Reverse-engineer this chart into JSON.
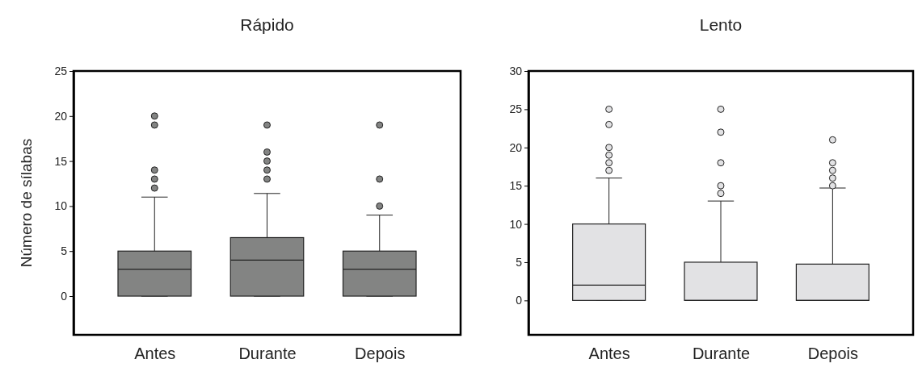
{
  "chart_data": [
    {
      "type": "box",
      "title": "Rápido",
      "ylabel": "Número de sílabas",
      "categories": [
        "Antes",
        "Durante",
        "Depois"
      ],
      "ylim": [
        -4.3,
        25
      ],
      "yticks": [
        0,
        5,
        10,
        15,
        20,
        25
      ],
      "marker": "circle",
      "series": [
        {
          "color": "#838483",
          "boxes": [
            {
              "low": 0,
              "q1": 0,
              "median": 3,
              "q3": 5,
              "high": 11,
              "outliers": [
                12,
                13,
                14,
                19,
                20
              ]
            },
            {
              "low": 0,
              "q1": 0,
              "median": 4,
              "q3": 6.5,
              "high": 11.4,
              "outliers": [
                13,
                14,
                15,
                16,
                19
              ]
            },
            {
              "low": 0,
              "q1": 0,
              "median": 3,
              "q3": 5,
              "high": 9,
              "outliers": [
                10,
                13,
                19
              ]
            }
          ]
        }
      ]
    },
    {
      "type": "box",
      "title": "Lento",
      "categories": [
        "Antes",
        "Durante",
        "Depois"
      ],
      "ylim": [
        -4.5,
        30
      ],
      "yticks": [
        0,
        5,
        10,
        15,
        20,
        25,
        30
      ],
      "marker": "circle",
      "series": [
        {
          "color": "#e2e2e4",
          "boxes": [
            {
              "low": 0,
              "q1": 0,
              "median": 2,
              "q3": 10,
              "high": 16,
              "outliers": [
                17,
                18,
                19,
                20,
                23,
                25
              ]
            },
            {
              "low": 0,
              "q1": 0,
              "median": 0,
              "q3": 5,
              "high": 13,
              "outliers": [
                14,
                15,
                18,
                22,
                25
              ]
            },
            {
              "low": 0,
              "q1": 0,
              "median": 0,
              "q3": 4.75,
              "high": 14.7,
              "outliers": [
                15,
                16,
                17,
                18,
                21
              ]
            }
          ]
        }
      ]
    }
  ]
}
